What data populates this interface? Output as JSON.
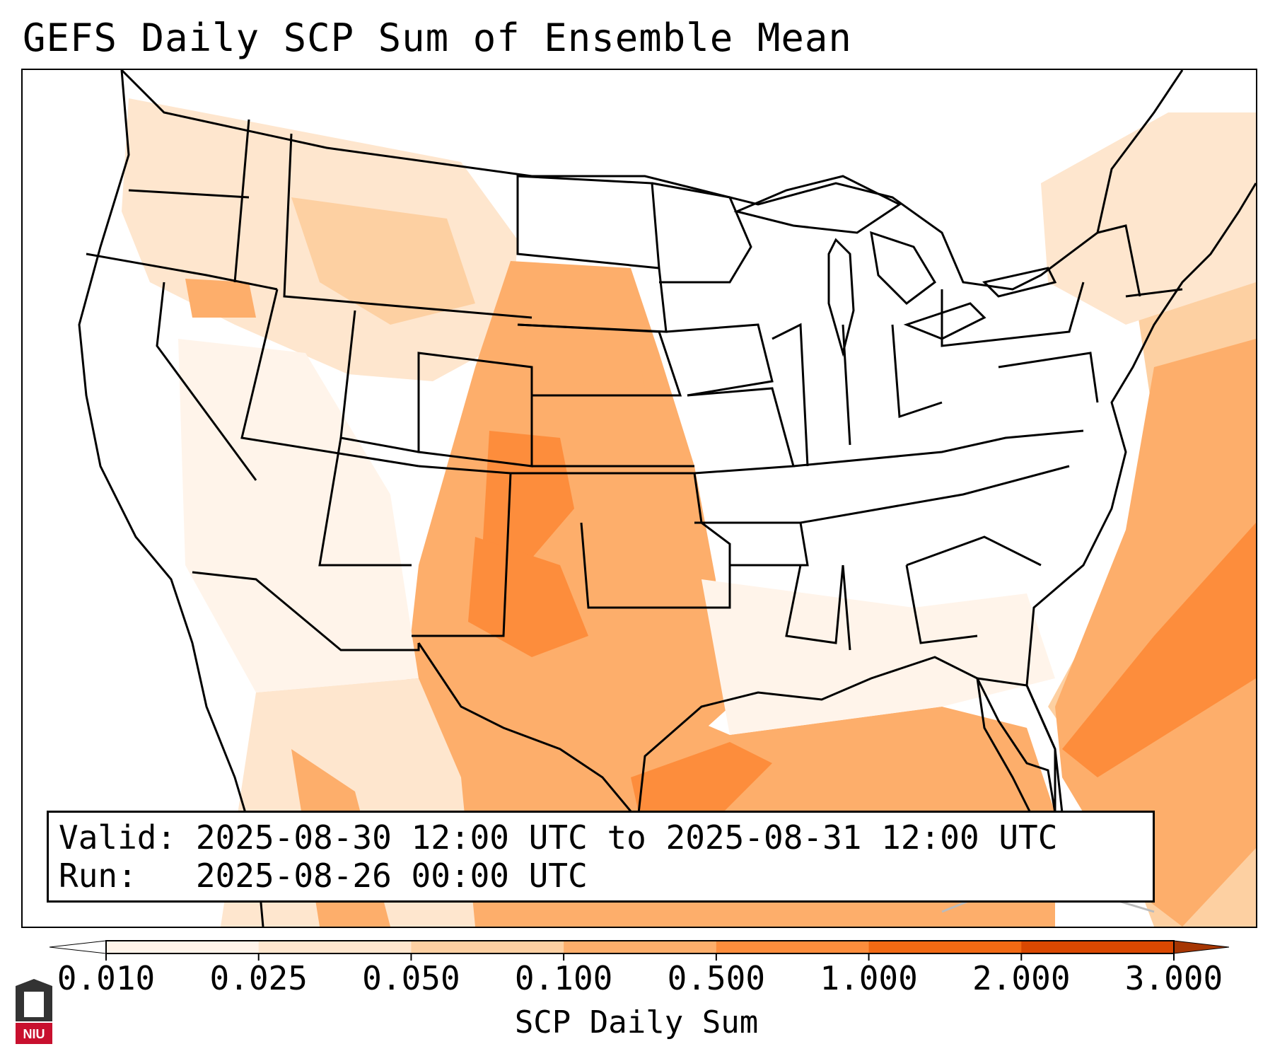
{
  "title": "GEFS Daily SCP Sum of Ensemble Mean",
  "info": {
    "valid_label": "Valid:",
    "valid_value": "2025-08-30 12:00 UTC to 2025-08-31 12:00 UTC",
    "run_label": "Run:",
    "run_value": "2025-08-26 00:00 UTC"
  },
  "colorbar": {
    "label": "SCP Daily Sum",
    "ticks": [
      "0.010",
      "0.025",
      "0.050",
      "0.100",
      "0.500",
      "1.000",
      "2.000",
      "3.000"
    ],
    "colors": [
      "#fff4ea",
      "#fee6ce",
      "#fdd0a2",
      "#fdae6b",
      "#fd8d3c",
      "#f16913",
      "#d94801"
    ],
    "extend": "both"
  },
  "logo": {
    "text": "NIU",
    "color": "#c8102e"
  },
  "map": {
    "projection": "lambert-conformal",
    "region": "CONUS",
    "features": [
      "state-borders",
      "country-borders",
      "coastlines",
      "great-lakes"
    ]
  }
}
